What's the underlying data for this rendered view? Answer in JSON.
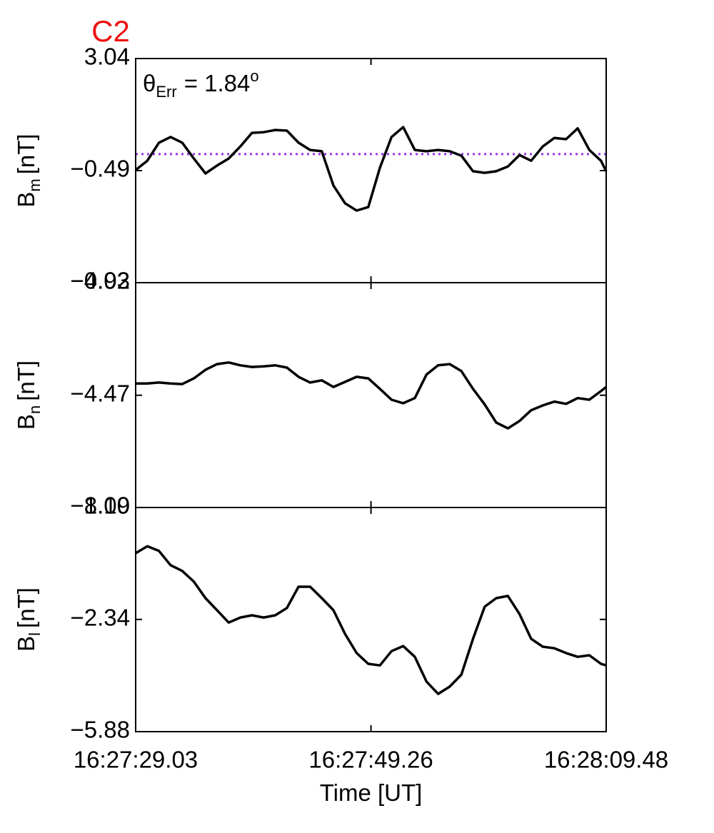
{
  "chart_data": [
    {
      "type": "line",
      "title": "C2",
      "title_color": "#ee1111",
      "ylabel": {
        "base": "B",
        "sub": "m",
        "unit": "[nT]"
      },
      "annotation": {
        "symbol": "θ",
        "sub": "Err",
        "text": "=  1.84",
        "sup": "o"
      },
      "reference": {
        "value": 0.03,
        "color": "#9933ee"
      },
      "ylim": [
        -4.02,
        3.04
      ],
      "yticks": [
        -4.02,
        -0.49,
        3.04
      ],
      "xlim": [
        "16:27:29.03",
        "16:28:09.48"
      ],
      "xticks": [
        "16:27:29.03",
        "16:27:49.26",
        "16:28:09.48"
      ],
      "color": "#000000",
      "x": [
        "16:27:29.03",
        "16:27:30.03",
        "16:27:31.03",
        "16:27:32.03",
        "16:27:33.03",
        "16:27:34.03",
        "16:27:35.03",
        "16:27:36.03",
        "16:27:37.03",
        "16:27:38.03",
        "16:27:39.03",
        "16:27:40.03",
        "16:27:41.03",
        "16:27:42.03",
        "16:27:43.03",
        "16:27:44.03",
        "16:27:45.03",
        "16:27:46.03",
        "16:27:47.03",
        "16:27:48.03",
        "16:27:49.03",
        "16:27:50.03",
        "16:27:51.03",
        "16:27:52.03",
        "16:27:53.03",
        "16:27:54.03",
        "16:27:55.03",
        "16:27:56.03",
        "16:27:57.03",
        "16:27:58.03",
        "16:27:59.03",
        "16:28:00.03",
        "16:28:01.03",
        "16:28:02.03",
        "16:28:03.03",
        "16:28:04.03",
        "16:28:05.03",
        "16:28:06.03",
        "16:28:07.03",
        "16:28:08.03",
        "16:28:09.03",
        "16:28:09.48"
      ],
      "values": [
        -0.47,
        -0.18,
        0.39,
        0.57,
        0.39,
        -0.11,
        -0.58,
        -0.33,
        -0.11,
        0.27,
        0.7,
        0.72,
        0.79,
        0.77,
        0.39,
        0.16,
        0.12,
        -0.96,
        -1.52,
        -1.75,
        -1.64,
        -0.4,
        0.57,
        0.88,
        0.16,
        0.12,
        0.16,
        0.12,
        -0.02,
        -0.51,
        -0.56,
        -0.51,
        -0.36,
        0.0,
        -0.18,
        0.27,
        0.54,
        0.5,
        0.84,
        0.16,
        -0.18,
        -0.51
      ]
    },
    {
      "type": "line",
      "ylabel": {
        "base": "B",
        "sub": "n",
        "unit": "[nT]"
      },
      "ylim": [
        -8.0,
        -0.93
      ],
      "yticks": [
        {
          "value": -8,
          "label": "−8.00"
        },
        -4.47,
        -0.93
      ],
      "xlim": [
        "16:27:29.03",
        "16:28:09.48"
      ],
      "xticks": [
        "16:27:29.03",
        "16:27:49.26",
        "16:28:09.48"
      ],
      "color": "#000000",
      "x": [
        "16:27:29.03",
        "16:27:30.03",
        "16:27:31.03",
        "16:27:32.03",
        "16:27:33.03",
        "16:27:34.03",
        "16:27:35.03",
        "16:27:36.03",
        "16:27:37.03",
        "16:27:38.03",
        "16:27:39.03",
        "16:27:40.03",
        "16:27:41.03",
        "16:27:42.03",
        "16:27:43.03",
        "16:27:44.03",
        "16:27:45.03",
        "16:27:46.03",
        "16:27:47.03",
        "16:27:48.03",
        "16:27:49.03",
        "16:27:50.03",
        "16:27:51.03",
        "16:27:52.03",
        "16:27:53.03",
        "16:27:54.03",
        "16:27:55.03",
        "16:27:56.03",
        "16:27:57.03",
        "16:27:58.03",
        "16:27:59.03",
        "16:28:00.03",
        "16:28:01.03",
        "16:28:02.03",
        "16:28:03.03",
        "16:28:04.03",
        "16:28:05.03",
        "16:28:06.03",
        "16:28:07.03",
        "16:28:08.03",
        "16:28:09.03",
        "16:28:09.48"
      ],
      "values": [
        -4.1,
        -4.1,
        -4.07,
        -4.1,
        -4.12,
        -3.94,
        -3.67,
        -3.49,
        -3.44,
        -3.53,
        -3.58,
        -3.56,
        -3.53,
        -3.6,
        -3.89,
        -4.07,
        -4.0,
        -4.21,
        -4.05,
        -3.89,
        -3.94,
        -4.27,
        -4.61,
        -4.72,
        -4.56,
        -3.82,
        -3.53,
        -3.49,
        -3.71,
        -4.27,
        -4.76,
        -5.33,
        -5.51,
        -5.28,
        -4.94,
        -4.79,
        -4.67,
        -4.74,
        -4.56,
        -4.61,
        -4.34,
        -4.21
      ]
    },
    {
      "type": "line",
      "ylabel": {
        "base": "B",
        "sub": "l",
        "unit": "[nT]"
      },
      "xlabel": "Time [UT]",
      "ylim": [
        -5.88,
        1.19
      ],
      "yticks": [
        -5.88,
        -2.34,
        1.19
      ],
      "xlim": [
        "16:27:29.03",
        "16:28:09.48"
      ],
      "xticks": [
        "16:27:29.03",
        "16:27:49.26",
        "16:28:09.48"
      ],
      "color": "#000000",
      "x": [
        "16:27:29.03",
        "16:27:30.03",
        "16:27:31.03",
        "16:27:32.03",
        "16:27:33.03",
        "16:27:34.03",
        "16:27:35.03",
        "16:27:36.03",
        "16:27:37.03",
        "16:27:38.03",
        "16:27:39.03",
        "16:27:40.03",
        "16:27:41.03",
        "16:27:42.03",
        "16:27:43.03",
        "16:27:44.03",
        "16:27:45.03",
        "16:27:46.03",
        "16:27:47.03",
        "16:27:48.03",
        "16:27:49.03",
        "16:27:50.03",
        "16:27:51.03",
        "16:27:52.03",
        "16:27:53.03",
        "16:27:54.03",
        "16:27:55.03",
        "16:27:56.03",
        "16:27:57.03",
        "16:27:58.03",
        "16:27:59.03",
        "16:28:00.03",
        "16:28:01.03",
        "16:28:02.03",
        "16:28:03.03",
        "16:28:04.03",
        "16:28:05.03",
        "16:28:06.03",
        "16:28:07.03",
        "16:28:08.03",
        "16:28:09.03",
        "16:28:09.48"
      ],
      "values": [
        -0.25,
        -0.03,
        -0.18,
        -0.63,
        -0.81,
        -1.15,
        -1.67,
        -2.05,
        -2.44,
        -2.28,
        -2.21,
        -2.28,
        -2.21,
        -1.98,
        -1.31,
        -1.31,
        -1.67,
        -2.05,
        -2.8,
        -3.4,
        -3.74,
        -3.79,
        -3.34,
        -3.18,
        -3.52,
        -4.3,
        -4.69,
        -4.46,
        -4.08,
        -2.95,
        -1.94,
        -1.67,
        -1.6,
        -2.17,
        -2.95,
        -3.2,
        -3.25,
        -3.4,
        -3.52,
        -3.47,
        -3.74,
        -3.79
      ]
    }
  ]
}
